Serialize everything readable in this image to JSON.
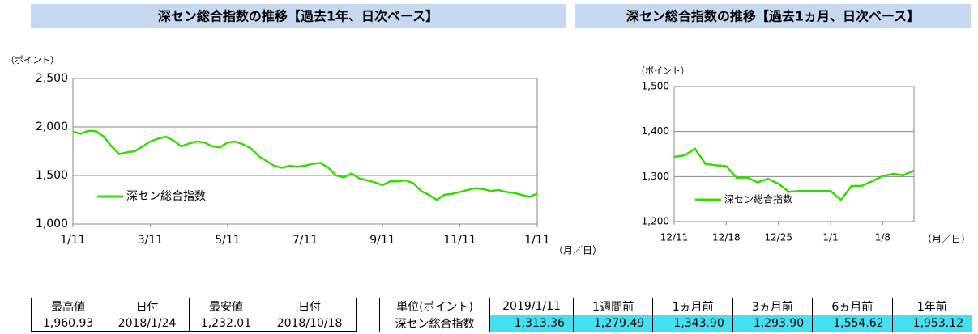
{
  "chart_data": [
    {
      "type": "line",
      "title": "深セン総合指数の推移【過去1年、日次ベース】",
      "y_label": "（ポイント）",
      "x_label": "（月／日）",
      "categories": [
        "1/11",
        null,
        null,
        null,
        null,
        null,
        null,
        null,
        null,
        null,
        "3/11",
        null,
        null,
        null,
        null,
        null,
        null,
        null,
        null,
        null,
        "5/11",
        null,
        null,
        null,
        null,
        null,
        null,
        null,
        null,
        null,
        "7/11",
        null,
        null,
        null,
        null,
        null,
        null,
        null,
        null,
        null,
        "9/11",
        null,
        null,
        null,
        null,
        null,
        null,
        null,
        null,
        null,
        "11/11",
        null,
        null,
        null,
        null,
        null,
        null,
        null,
        null,
        null,
        "1/11"
      ],
      "series": [
        {
          "name": "深セン総合指数",
          "color": "#33dd00",
          "values": [
            1953,
            1930,
            1960,
            1955,
            1900,
            1800,
            1720,
            1740,
            1750,
            1800,
            1850,
            1880,
            1900,
            1860,
            1800,
            1830,
            1850,
            1840,
            1800,
            1790,
            1840,
            1850,
            1820,
            1780,
            1700,
            1650,
            1600,
            1580,
            1600,
            1590,
            1600,
            1620,
            1630,
            1580,
            1500,
            1480,
            1520,
            1470,
            1450,
            1430,
            1400,
            1440,
            1440,
            1450,
            1420,
            1340,
            1300,
            1250,
            1300,
            1310,
            1330,
            1350,
            1370,
            1360,
            1340,
            1350,
            1330,
            1320,
            1300,
            1280,
            1313.36
          ]
        }
      ],
      "ylim": [
        1000,
        2500
      ],
      "yticks": [
        {
          "value": 1000,
          "label": "1,000"
        },
        {
          "value": 1500,
          "label": "1,500"
        },
        {
          "value": 2000,
          "label": "2,000"
        },
        {
          "value": 2500,
          "label": "2,500"
        }
      ],
      "grid": true,
      "legend": "lower left"
    },
    {
      "type": "line",
      "title": "深セン総合指数の推移【過去1ヵ月、日次ベース】",
      "y_label": "（ポイント）",
      "x_label": "（月／日）",
      "categories": [
        "12/11",
        null,
        null,
        null,
        null,
        "12/18",
        null,
        null,
        null,
        null,
        "12/25",
        null,
        null,
        null,
        null,
        "1/1",
        null,
        null,
        null,
        null,
        "1/8",
        null,
        null,
        null
      ],
      "series": [
        {
          "name": "深セン総合指数",
          "color": "#33dd00",
          "values": [
            1343.9,
            1347,
            1362,
            1328,
            1325,
            1323,
            1297,
            1298,
            1287,
            1295,
            1284,
            1266,
            1268,
            1268,
            1268,
            1268,
            1248,
            1279,
            1279.49,
            1290,
            1301,
            1306,
            1303,
            1313.36
          ]
        }
      ],
      "ylim": [
        1200,
        1500
      ],
      "yticks": [
        {
          "value": 1200,
          "label": "1,200"
        },
        {
          "value": 1300,
          "label": "1,300"
        },
        {
          "value": 1400,
          "label": "1,400"
        },
        {
          "value": 1500,
          "label": "1,500"
        }
      ],
      "grid": true,
      "legend": "lower left"
    }
  ],
  "tables": {
    "summary": {
      "header": [
        "最高値",
        "日付",
        "最安値",
        "日付"
      ],
      "rows": [
        [
          "1,960.93",
          "2018/1/24",
          "1,232.01",
          "2018/10/18"
        ]
      ]
    },
    "comparison": {
      "header": [
        "単位(ポイント)",
        "2019/1/11",
        "1週間前",
        "1ヵ月前",
        "3ヵ月前",
        "6ヵ月前",
        "1年前"
      ],
      "rows": [
        [
          "深セン総合指数",
          "1,313.36",
          "1,279.49",
          "1,343.90",
          "1,293.90",
          "1,554.62",
          "1,953.12"
        ]
      ]
    }
  }
}
